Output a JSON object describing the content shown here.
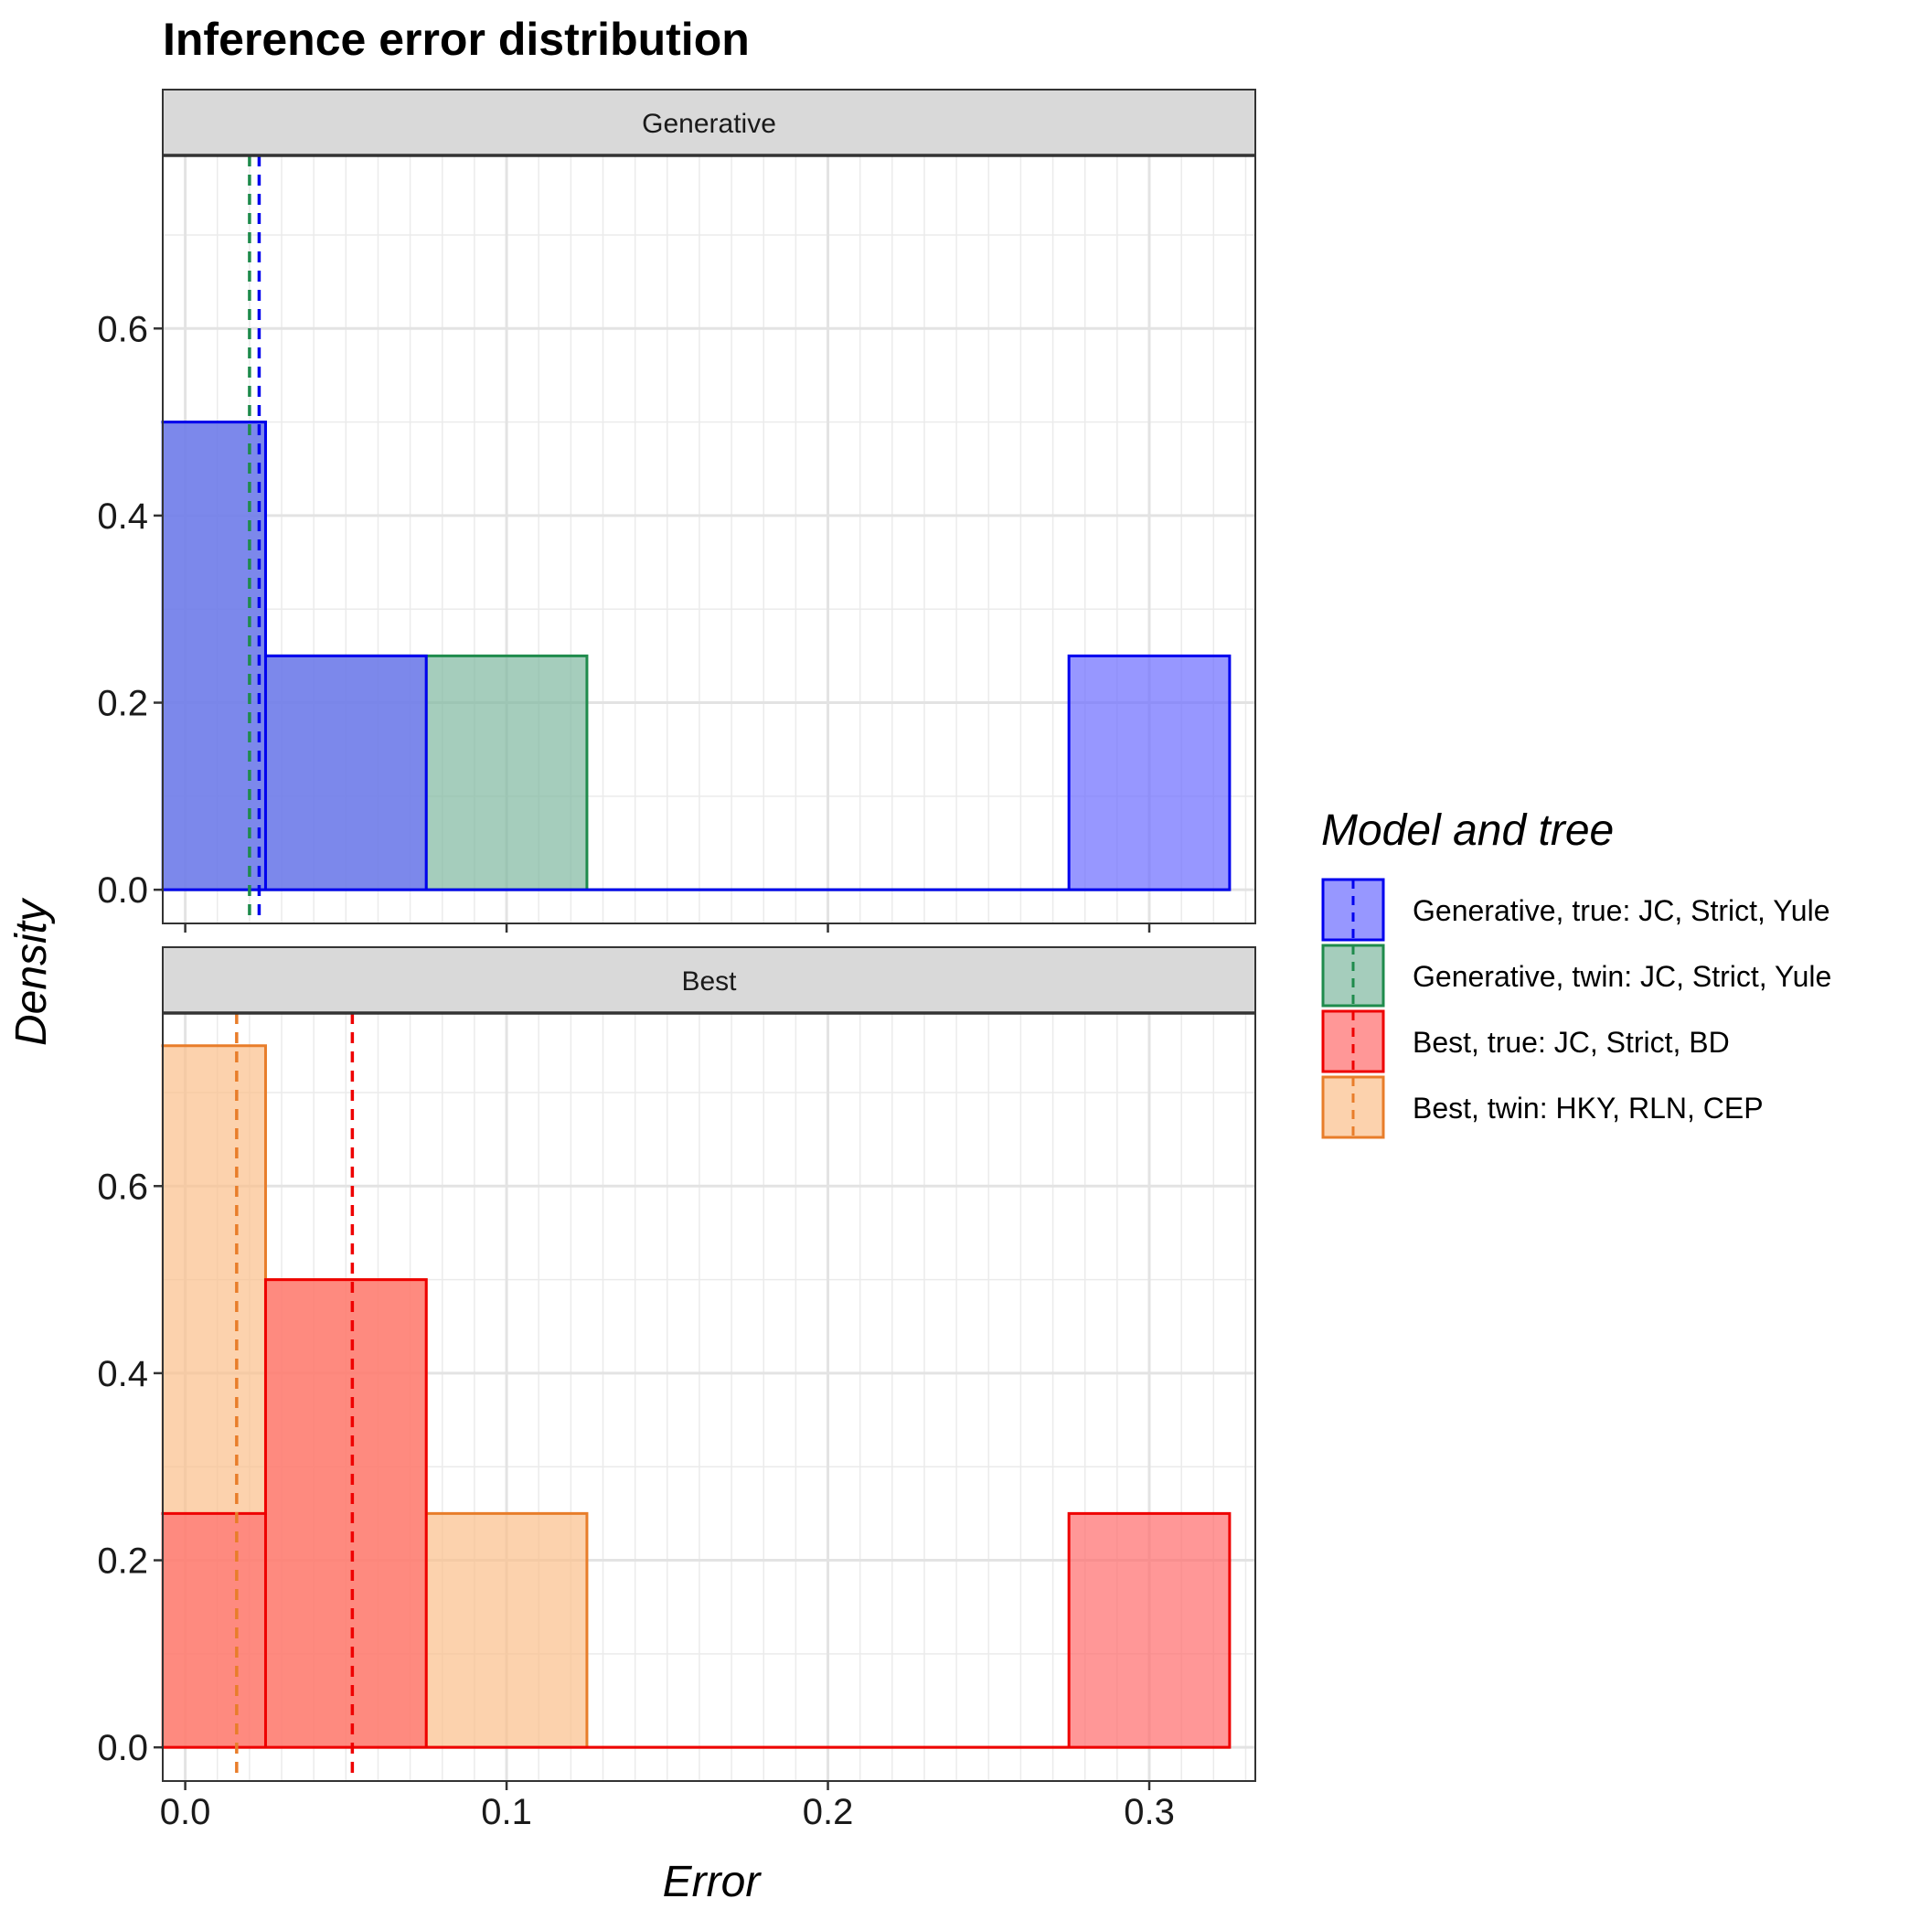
{
  "chart_data": {
    "type": "bar",
    "title": "Inference error distribution",
    "xlabel": "Error",
    "ylabel": "Density",
    "xlim": [
      -0.007,
      0.333
    ],
    "ylim": [
      -0.036,
      0.785
    ],
    "x_ticks": [
      0.0,
      0.1,
      0.2,
      0.3
    ],
    "x_tick_labels": [
      "0.0",
      "0.1",
      "0.2",
      "0.3"
    ],
    "y_ticks": [
      0.0,
      0.2,
      0.4,
      0.6
    ],
    "y_tick_labels": [
      "0.0",
      "0.2",
      "0.4",
      "0.6"
    ],
    "grid": true,
    "bin_width": 0.05,
    "legend_title": "Model and tree",
    "legend_position": "right",
    "panels": [
      {
        "strip": "Generative",
        "series": [
          {
            "name": "Generative, true: JC, Strict, Yule",
            "color": "#0000ee",
            "fill": "#6b6bff",
            "bins": [
              {
                "x0": -0.025,
                "x1": 0.025,
                "y": 0.5
              },
              {
                "x0": 0.025,
                "x1": 0.075,
                "y": 0.25
              },
              {
                "x0": 0.075,
                "x1": 0.275,
                "y": 0.0
              },
              {
                "x0": 0.275,
                "x1": 0.325,
                "y": 0.25
              }
            ],
            "mean": 0.023
          },
          {
            "name": "Generative, twin: JC, Strict, Yule",
            "color": "#1f8b4c",
            "fill": "#7fb8a0",
            "bins": [
              {
                "x0": -0.025,
                "x1": 0.025,
                "y": 0.5
              },
              {
                "x0": 0.025,
                "x1": 0.075,
                "y": 0.25
              },
              {
                "x0": 0.075,
                "x1": 0.125,
                "y": 0.25
              },
              {
                "x0": 0.125,
                "x1": 0.325,
                "y": 0.0
              }
            ],
            "mean": 0.02
          }
        ]
      },
      {
        "strip": "Best",
        "series": [
          {
            "name": "Best, true: JC, Strict, BD",
            "color": "#ee0000",
            "fill": "#ff6b6b",
            "bins": [
              {
                "x0": -0.025,
                "x1": 0.025,
                "y": 0.25
              },
              {
                "x0": 0.025,
                "x1": 0.075,
                "y": 0.5
              },
              {
                "x0": 0.075,
                "x1": 0.275,
                "y": 0.0
              },
              {
                "x0": 0.275,
                "x1": 0.325,
                "y": 0.25
              }
            ],
            "mean": 0.052
          },
          {
            "name": "Best, twin: HKY, RLN, CEP",
            "color": "#e87d2a",
            "fill": "#fbbf8a",
            "bins": [
              {
                "x0": -0.025,
                "x1": 0.025,
                "y": 0.75
              },
              {
                "x0": 0.025,
                "x1": 0.075,
                "y": 0.5
              },
              {
                "x0": 0.075,
                "x1": 0.125,
                "y": 0.25
              },
              {
                "x0": 0.125,
                "x1": 0.325,
                "y": 0.0
              }
            ],
            "mean": 0.016
          }
        ]
      }
    ]
  }
}
